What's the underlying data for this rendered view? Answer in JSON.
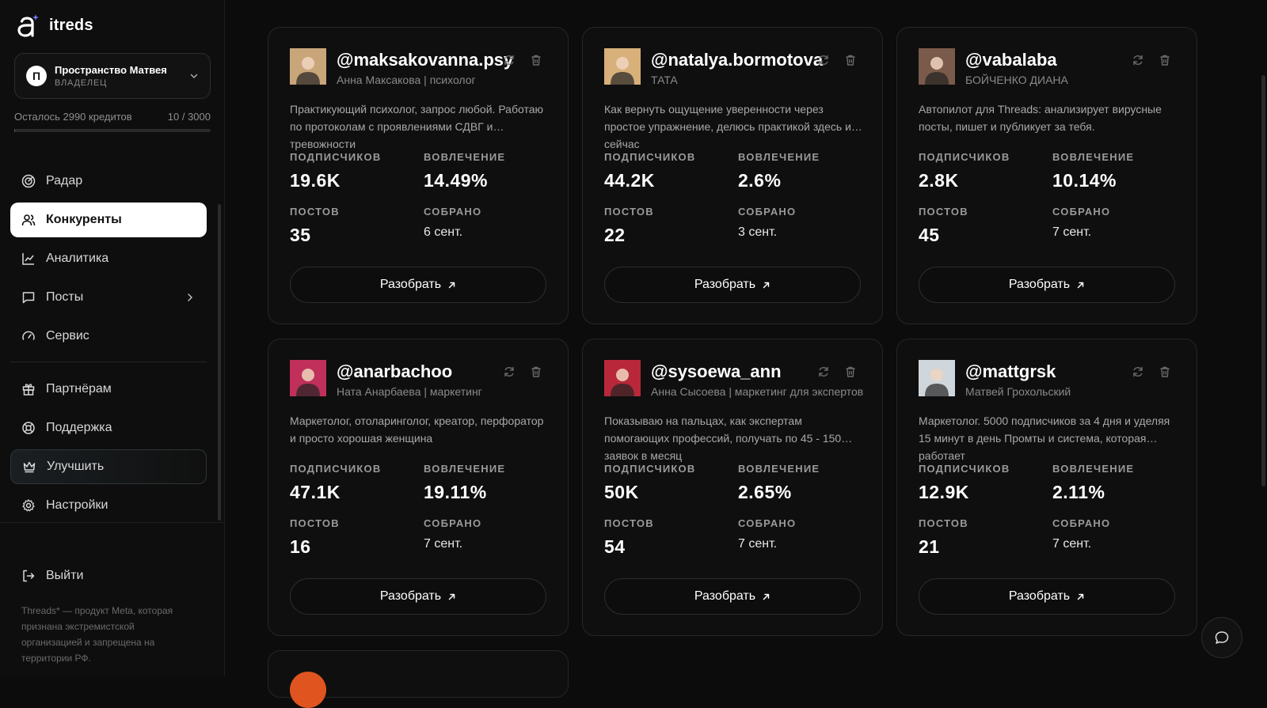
{
  "app": {
    "name": "itreds"
  },
  "workspace": {
    "name": "Пространство Матвея",
    "initial": "П",
    "role": "ВЛАДЕЛЕЦ"
  },
  "credits": {
    "remaining_text": "Осталось 2990 кредитов",
    "usage_text": "10 / 3000",
    "used_fraction": 0.0033
  },
  "nav": {
    "radar": "Радар",
    "competitors": "Конкуренты",
    "analytics": "Аналитика",
    "posts": "Посты",
    "service": "Сервис",
    "partners": "Партнёрам",
    "support": "Поддержка",
    "upgrade": "Улучшить",
    "settings": "Настройки",
    "logout": "Выйти"
  },
  "disclaimer": "Threads* — продукт Meta, которая признана экстремистской организацией и запрещена на территории РФ.",
  "labels": {
    "followers": "ПОДПИСЧИКОВ",
    "engagement": "ВОВЛЕЧЕНИЕ",
    "posts": "ПОСТОВ",
    "collected": "СОБРАНО",
    "analyze": "Разобрать"
  },
  "cards": [
    {
      "handle": "@maksakovanna.psy",
      "name": "Анна Максакова | психолог",
      "bio": "Практикующий психолог, запрос любой. Работаю по протоколам с проявлениями СДВГ и тревожности",
      "followers": "19.6K",
      "engagement": "14.49%",
      "posts": "35",
      "collected": "6 сент.",
      "avatar_color": "#c9a67a"
    },
    {
      "handle": "@natalya.bormotova",
      "name": "ТАТА",
      "bio": "Как вернуть ощущение уверенности через простое упражнение, делюсь практикой здесь и сейчас",
      "followers": "44.2K",
      "engagement": "2.6%",
      "posts": "22",
      "collected": "3 сент.",
      "avatar_color": "#d8b07a"
    },
    {
      "handle": "@vabalaba",
      "name": "БОЙЧЕНКО ДИАНА",
      "bio": "Автопилот для Threads: анализирует вирусные посты, пишет и публикует за тебя.",
      "followers": "2.8K",
      "engagement": "10.14%",
      "posts": "45",
      "collected": "7 сент.",
      "avatar_color": "#7a5a4a"
    },
    {
      "handle": "@anarbachoo",
      "name": "Ната Анарбаева | маркетинг",
      "bio": "Маркетолог, отоларинголог, креатор, перфоратор и просто хорошая женщина",
      "followers": "47.1K",
      "engagement": "19.11%",
      "posts": "16",
      "collected": "7 сент.",
      "avatar_color": "#c0305a"
    },
    {
      "handle": "@sysoewa_ann",
      "name": "Анна Сысоева | маркетинг для экспертов",
      "bio": "Показываю на пальцах, как экспертам помогающих профессий, получать по 45 - 150 заявок в месяц",
      "followers": "50K",
      "engagement": "2.65%",
      "posts": "54",
      "collected": "7 сент.",
      "avatar_color": "#b8283a"
    },
    {
      "handle": "@mattgrsk",
      "name": "Матвей Грохольский",
      "bio": "Маркетолог. 5000 подписчиков за 4 дня и уделяя 15 минут в день Промты и система, которая работает",
      "followers": "12.9K",
      "engagement": "2.11%",
      "posts": "21",
      "collected": "7 сент.",
      "avatar_color": "#cfd6dc"
    }
  ]
}
